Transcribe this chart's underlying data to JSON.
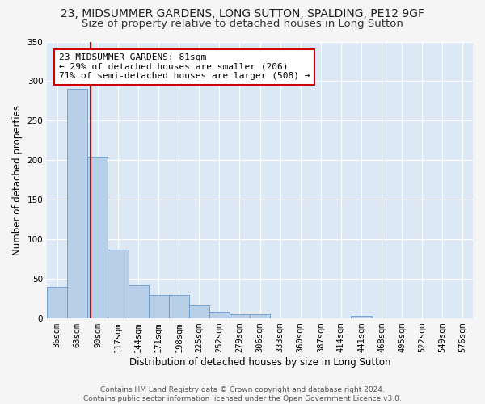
{
  "title_line1": "23, MIDSUMMER GARDENS, LONG SUTTON, SPALDING, PE12 9GF",
  "title_line2": "Size of property relative to detached houses in Long Sutton",
  "xlabel": "Distribution of detached houses by size in Long Sutton",
  "ylabel": "Number of detached properties",
  "footer_line1": "Contains HM Land Registry data © Crown copyright and database right 2024.",
  "footer_line2": "Contains public sector information licensed under the Open Government Licence v3.0.",
  "bar_labels": [
    "36sqm",
    "63sqm",
    "90sqm",
    "117sqm",
    "144sqm",
    "171sqm",
    "198sqm",
    "225sqm",
    "252sqm",
    "279sqm",
    "306sqm",
    "333sqm",
    "360sqm",
    "387sqm",
    "414sqm",
    "441sqm",
    "468sqm",
    "495sqm",
    "522sqm",
    "549sqm",
    "576sqm"
  ],
  "bar_values": [
    40,
    290,
    204,
    87,
    42,
    30,
    30,
    16,
    8,
    5,
    5,
    0,
    0,
    0,
    0,
    3,
    0,
    0,
    0,
    0,
    0
  ],
  "bar_color": "#b8cfe8",
  "bar_edge_color": "#6699cc",
  "property_label": "23 MIDSUMMER GARDENS: 81sqm",
  "annotation_line1": "← 29% of detached houses are smaller (206)",
  "annotation_line2": "71% of semi-detached houses are larger (508) →",
  "vline_color": "#cc0000",
  "ylim": [
    0,
    350
  ],
  "background_color": "#dde8f5",
  "grid_color": "#ffffff",
  "fig_background": "#f5f5f5",
  "title_fontsize": 10,
  "subtitle_fontsize": 9.5,
  "axis_label_fontsize": 8.5,
  "tick_fontsize": 7.5,
  "annotation_fontsize": 8
}
